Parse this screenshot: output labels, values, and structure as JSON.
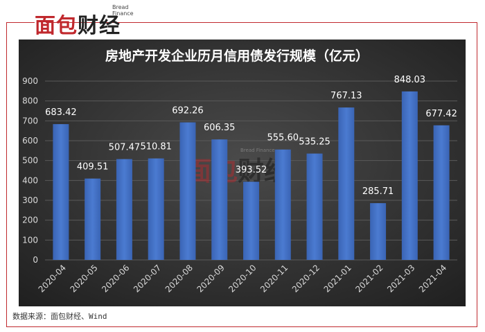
{
  "logo": {
    "small": "Bread Finance",
    "main_red": "面包",
    "main_dark": "财经"
  },
  "watermark": {
    "small": "Bread Finance",
    "main_red": "面包",
    "main_dark": "财经"
  },
  "source": "数据来源：面包财经、Wind",
  "colors": {
    "background_dark": "#2b2b2b",
    "bar": "#4472c4",
    "frame": "#c0282d",
    "text_light": "#ffffff",
    "axis_text": "#d9d9d9"
  },
  "chart_data": {
    "type": "bar",
    "title": "房地产开发企业历月信用债发行规模（亿元）",
    "xlabel": "",
    "ylabel": "",
    "ylim": [
      0,
      900
    ],
    "yticks": [
      0,
      100,
      200,
      300,
      400,
      500,
      600,
      700,
      800,
      900
    ],
    "categories": [
      "2020-04",
      "2020-05",
      "2020-06",
      "2020-07",
      "2020-08",
      "2020-09",
      "2020-10",
      "2020-11",
      "2020-12",
      "2021-01",
      "2021-02",
      "2021-03",
      "2021-04"
    ],
    "values": [
      683.42,
      409.51,
      507.47,
      510.81,
      692.26,
      606.35,
      393.52,
      555.6,
      535.25,
      767.13,
      285.71,
      848.03,
      677.42
    ],
    "value_labels": [
      "683.42",
      "409.51",
      "507.47",
      "510.81",
      "692.26",
      "606.35",
      "393.52",
      "555.60",
      "535.25",
      "767.13",
      "285.71",
      "848.03",
      "677.42"
    ],
    "grid": true,
    "legend": "none"
  }
}
